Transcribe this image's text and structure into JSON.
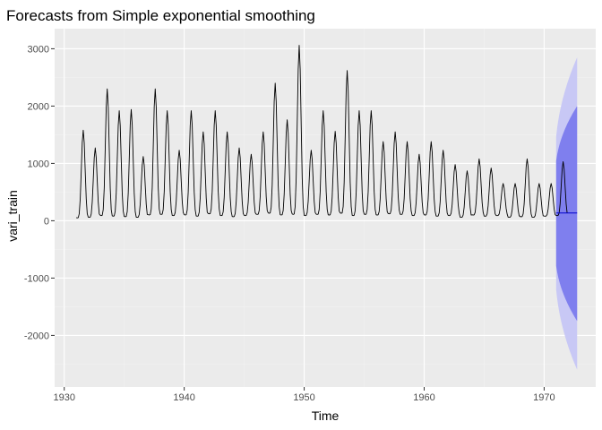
{
  "chart_data": {
    "type": "line",
    "title": "Forecasts from Simple exponential smoothing",
    "xlabel": "Time",
    "ylabel": "vari_train",
    "xlim": [
      1929.2,
      1974.3
    ],
    "ylim": [
      -2900,
      3350
    ],
    "x_ticks": [
      1930,
      1940,
      1950,
      1960,
      1970
    ],
    "y_ticks": [
      -2000,
      -1000,
      0,
      1000,
      2000,
      3000
    ],
    "x_tick_labels": [
      "1930",
      "1940",
      "1950",
      "1960",
      "1970"
    ],
    "y_tick_labels": [
      "-2000",
      "-1000",
      "0",
      "1000",
      "2000",
      "3000"
    ],
    "grid": true,
    "legend": "none",
    "series_observed": {
      "start": 1931.0,
      "frequency": 12,
      "annual_peaks": [
        1580,
        1270,
        2300,
        1920,
        1940,
        1120,
        2300,
        1920,
        1230,
        1920,
        1550,
        1920,
        1550,
        1270,
        1160,
        1550,
        2400,
        1760,
        3060,
        1230,
        1920,
        1560,
        2620,
        1920,
        1920,
        1380,
        1550,
        1380,
        1160,
        1380,
        1230,
        980,
        870,
        1080,
        920,
        650,
        650,
        1080,
        650,
        650,
        1030
      ],
      "annual_troughs": [
        50,
        60,
        90,
        80,
        70,
        60,
        100,
        110,
        90,
        100,
        80,
        120,
        90,
        70,
        90,
        110,
        130,
        100,
        110,
        90,
        110,
        100,
        130,
        90,
        110,
        100,
        120,
        110,
        90,
        100,
        80,
        90,
        60,
        100,
        80,
        90,
        60,
        70,
        60,
        80,
        90
      ]
    },
    "forecast": {
      "start": 1971.0,
      "end": 1972.75,
      "point": 135,
      "lo80_end": -1750,
      "hi80_end": 2000,
      "lo95_end": -2600,
      "hi95_end": 2850
    },
    "colors": {
      "panel_bg": "#ebebeb",
      "grid_major": "#ffffff",
      "grid_minor": "#f2f2f2",
      "observed_line": "#000000",
      "forecast_line": "#0000cc",
      "band_95": "#c8c8f5",
      "band_80": "#7f7fee"
    }
  }
}
